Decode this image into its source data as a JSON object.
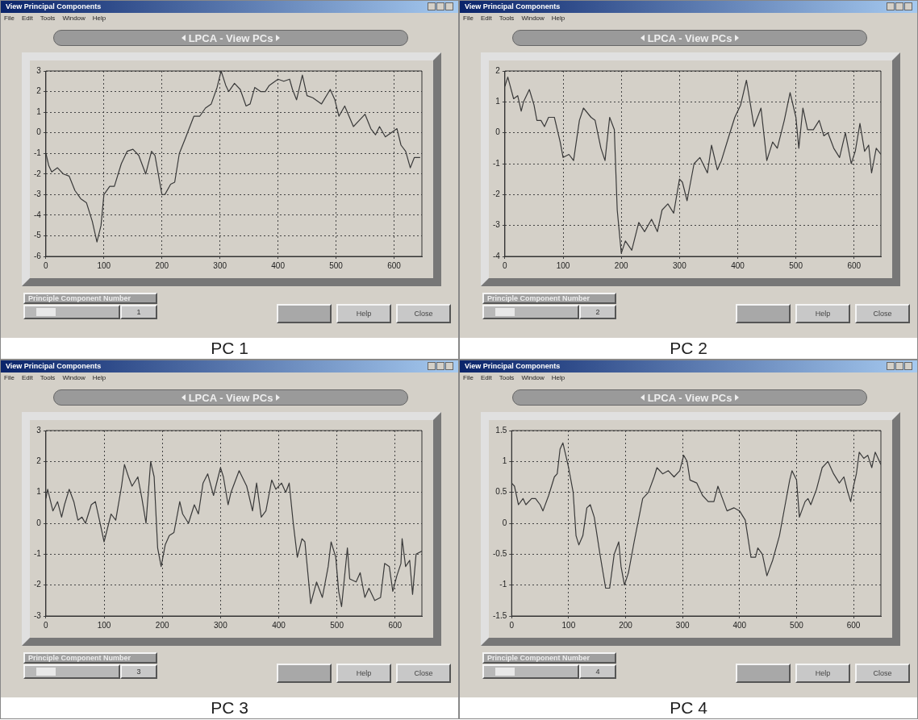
{
  "chart_data": [
    {
      "type": "line",
      "title": "LPCA - View PCs",
      "annotations": [
        "View Principal Components",
        "File",
        "Edit",
        "Tools",
        "Window",
        "Help",
        "Principle Component Number",
        "1",
        "Help",
        "Close",
        "PC 1"
      ],
      "xlim": [
        0,
        648
      ],
      "xticks": [
        0,
        100,
        200,
        300,
        400,
        500,
        600
      ],
      "ylim": [
        -6,
        3
      ],
      "yticks": [
        -6,
        -5,
        -4,
        -3,
        -2,
        -1,
        0,
        1,
        2,
        3
      ],
      "grid": true,
      "x": [
        0,
        5,
        10,
        20,
        30,
        40,
        50,
        60,
        70,
        80,
        88,
        95,
        100,
        110,
        118,
        130,
        140,
        150,
        160,
        172,
        182,
        188,
        200,
        205,
        215,
        222,
        230,
        240,
        255,
        265,
        275,
        285,
        295,
        302,
        310,
        315,
        325,
        335,
        345,
        352,
        360,
        370,
        378,
        385,
        400,
        410,
        420,
        425,
        432,
        442,
        450,
        460,
        475,
        490,
        498,
        505,
        515,
        530,
        540,
        550,
        560,
        568,
        575,
        585,
        595,
        605,
        612,
        620,
        628,
        635,
        645
      ],
      "series": [
        {
          "color": "#3a3a3a",
          "values": [
            -1,
            -1.6,
            -1.9,
            -1.7,
            -2,
            -2.1,
            -2.8,
            -3.2,
            -3.4,
            -4.3,
            -5.3,
            -4.5,
            -3,
            -2.6,
            -2.6,
            -1.5,
            -0.9,
            -0.8,
            -1.1,
            -2,
            -0.9,
            -1.1,
            -3,
            -3,
            -2.5,
            -2.4,
            -1,
            -0.3,
            0.8,
            0.8,
            1.2,
            1.4,
            2.2,
            3,
            2.3,
            2,
            2.4,
            2.1,
            1.3,
            1.4,
            2.2,
            2,
            2,
            2.3,
            2.6,
            2.5,
            2.6,
            2.1,
            1.6,
            2.8,
            1.8,
            1.7,
            1.4,
            2.1,
            1.6,
            0.8,
            1.3,
            0.3,
            0.6,
            0.9,
            0.2,
            -0.1,
            0.3,
            -0.2,
            0,
            0.2,
            -0.6,
            -0.9,
            -1.7,
            -1.2,
            -1.2
          ]
        }
      ]
    },
    {
      "type": "line",
      "title": "LPCA - View PCs",
      "annotations": [
        "View Principal Components",
        "File",
        "Edit",
        "Tools",
        "Window",
        "Help",
        "Principle Component Number",
        "2",
        "Help",
        "Close",
        "PC 2"
      ],
      "xlim": [
        0,
        646
      ],
      "xticks": [
        0,
        100,
        200,
        300,
        400,
        500,
        600
      ],
      "ylim": [
        -4,
        2
      ],
      "yticks": [
        -4,
        -3,
        -2,
        -1,
        0,
        1,
        2
      ],
      "grid": true,
      "x": [
        0,
        5,
        15,
        22,
        28,
        32,
        42,
        50,
        55,
        62,
        68,
        75,
        85,
        95,
        100,
        110,
        118,
        128,
        135,
        148,
        155,
        165,
        172,
        180,
        188,
        193,
        200,
        207,
        218,
        230,
        240,
        252,
        262,
        270,
        280,
        290,
        300,
        305,
        313,
        325,
        335,
        348,
        355,
        365,
        372,
        385,
        395,
        405,
        415,
        422,
        428,
        440,
        450,
        460,
        468,
        480,
        490,
        500,
        505,
        512,
        520,
        530,
        540,
        548,
        555,
        565,
        575,
        585,
        595,
        602,
        610,
        618,
        625,
        630,
        638,
        646
      ],
      "series": [
        {
          "color": "#3a3a3a",
          "values": [
            1.5,
            1.8,
            1.1,
            1.2,
            0.7,
            1,
            1.4,
            0.9,
            0.4,
            0.4,
            0.2,
            0.5,
            0.5,
            -0.3,
            -0.8,
            -0.7,
            -0.9,
            0.4,
            0.8,
            0.5,
            0.4,
            -0.5,
            -0.9,
            0.5,
            0.1,
            -2.5,
            -3.9,
            -3.5,
            -3.8,
            -2.9,
            -3.2,
            -2.8,
            -3.2,
            -2.5,
            -2.3,
            -2.6,
            -1.5,
            -1.6,
            -2.2,
            -1,
            -0.8,
            -1.3,
            -0.4,
            -1.2,
            -0.9,
            -0.1,
            0.5,
            0.9,
            1.7,
            0.9,
            0.2,
            0.8,
            -0.9,
            -0.3,
            -0.5,
            0.4,
            1.3,
            0.5,
            -0.5,
            0.8,
            0.1,
            0.1,
            0.4,
            -0.1,
            0,
            -0.5,
            -0.8,
            0,
            -1,
            -0.6,
            0.3,
            -0.6,
            -0.4,
            -1.3,
            -0.5,
            -0.7
          ]
        }
      ]
    },
    {
      "type": "line",
      "title": "LPCA - View PCs",
      "annotations": [
        "View Principal Components",
        "File",
        "Edit",
        "Tools",
        "Window",
        "Help",
        "Principle Component Number",
        "3",
        "Help",
        "Close",
        "PC 3"
      ],
      "xlim": [
        0,
        646
      ],
      "xticks": [
        0,
        100,
        200,
        300,
        400,
        500,
        600
      ],
      "ylim": [
        -3,
        3
      ],
      "yticks": [
        -3,
        -2,
        -1,
        0,
        1,
        2,
        3
      ],
      "grid": true,
      "x": [
        0,
        3,
        12,
        20,
        27,
        32,
        40,
        48,
        55,
        62,
        68,
        78,
        85,
        92,
        100,
        108,
        112,
        120,
        130,
        135,
        142,
        148,
        158,
        165,
        172,
        180,
        186,
        192,
        198,
        205,
        212,
        220,
        230,
        235,
        245,
        255,
        262,
        270,
        278,
        288,
        300,
        305,
        313,
        318,
        332,
        345,
        355,
        362,
        370,
        378,
        388,
        395,
        405,
        412,
        418,
        425,
        432,
        440,
        445,
        455,
        465,
        475,
        485,
        490,
        498,
        503,
        508,
        518,
        522,
        533,
        540,
        548,
        555,
        565,
        575,
        582,
        590,
        596,
        603,
        610,
        612,
        618,
        625,
        630,
        636,
        646
      ],
      "series": [
        {
          "color": "#3a3a3a",
          "values": [
            0.8,
            1.1,
            0.4,
            0.7,
            0.2,
            0.6,
            1.1,
            0.7,
            0.1,
            0.2,
            0,
            0.6,
            0.7,
            0.1,
            -0.6,
            0,
            0.3,
            0.1,
            1.2,
            1.9,
            1.5,
            1.2,
            1.5,
            0.8,
            0,
            2,
            1.5,
            -0.8,
            -1.4,
            -0.7,
            -0.4,
            -0.3,
            0.7,
            0.3,
            0,
            0.6,
            0.3,
            1.3,
            1.6,
            0.9,
            1.8,
            1.5,
            0.6,
            1,
            1.7,
            1.2,
            0.4,
            1.3,
            0.2,
            0.4,
            1.4,
            1.1,
            1.3,
            1,
            1.3,
            0,
            -1.1,
            -0.5,
            -0.6,
            -2.6,
            -1.9,
            -2.4,
            -1.4,
            -0.6,
            -1.1,
            -2.2,
            -2.7,
            -0.8,
            -1.8,
            -1.9,
            -1.6,
            -2.4,
            -2.1,
            -2.5,
            -2.4,
            -1.3,
            -1.4,
            -2.2,
            -1.7,
            -1.3,
            -0.5,
            -1.4,
            -1.2,
            -2.3,
            -1,
            -0.9
          ]
        }
      ]
    },
    {
      "type": "line",
      "title": "LPCA - View PCs",
      "annotations": [
        "View Principal Components",
        "File",
        "Edit",
        "Tools",
        "Window",
        "Help",
        "Principle Component Number",
        "4",
        "Help",
        "Close",
        "PC 4"
      ],
      "xlim": [
        0,
        648
      ],
      "xticks": [
        0,
        100,
        200,
        300,
        400,
        500,
        600
      ],
      "ylim": [
        -1.5,
        1.5
      ],
      "yticks": [
        -1.5,
        -1,
        -0.5,
        0,
        0.5,
        1,
        1.5
      ],
      "grid": true,
      "x": [
        0,
        5,
        12,
        20,
        25,
        35,
        42,
        50,
        55,
        65,
        75,
        80,
        85,
        90,
        95,
        100,
        108,
        113,
        118,
        125,
        132,
        138,
        145,
        155,
        165,
        172,
        180,
        188,
        192,
        198,
        205,
        215,
        230,
        240,
        250,
        255,
        265,
        275,
        285,
        295,
        302,
        308,
        313,
        325,
        335,
        345,
        355,
        362,
        370,
        378,
        390,
        400,
        410,
        420,
        428,
        432,
        440,
        448,
        458,
        470,
        480,
        488,
        492,
        500,
        505,
        515,
        520,
        525,
        535,
        545,
        555,
        565,
        575,
        583,
        590,
        595,
        600,
        605,
        610,
        618,
        625,
        632,
        638,
        648
      ],
      "series": [
        {
          "color": "#3a3a3a",
          "values": [
            0.65,
            0.6,
            0.3,
            0.4,
            0.3,
            0.4,
            0.4,
            0.3,
            0.2,
            0.45,
            0.75,
            0.8,
            1.2,
            1.3,
            1.1,
            0.9,
            0.5,
            -0.2,
            -0.35,
            -0.2,
            0.25,
            0.3,
            0.1,
            -0.5,
            -1.05,
            -1.05,
            -0.5,
            -0.3,
            -0.7,
            -1,
            -0.8,
            -0.3,
            0.4,
            0.5,
            0.75,
            0.9,
            0.8,
            0.85,
            0.75,
            0.85,
            1.1,
            1,
            0.7,
            0.65,
            0.45,
            0.35,
            0.35,
            0.6,
            0.4,
            0.2,
            0.25,
            0.2,
            0.05,
            -0.55,
            -0.55,
            -0.4,
            -0.5,
            -0.85,
            -0.6,
            -0.2,
            0.3,
            0.7,
            0.85,
            0.7,
            0.1,
            0.35,
            0.4,
            0.3,
            0.55,
            0.9,
            1,
            0.8,
            0.65,
            0.75,
            0.5,
            0.35,
            0.6,
            0.8,
            1.15,
            1.05,
            1.1,
            0.9,
            1.15,
            0.95
          ]
        }
      ]
    }
  ]
}
